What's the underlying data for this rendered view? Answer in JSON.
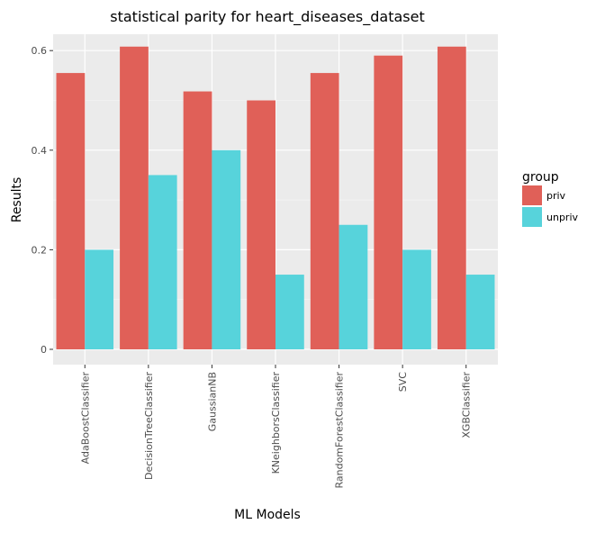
{
  "chart_data": {
    "type": "bar",
    "title": "statistical parity for heart_diseases_dataset",
    "xlabel": "ML Models",
    "ylabel": "Results",
    "ylim": [
      0,
      0.63
    ],
    "yticks": [
      0,
      0.2,
      0.4,
      0.6
    ],
    "ytick_labels": [
      "0",
      "0.2",
      "0.4",
      "0.6"
    ],
    "grid": true,
    "legend_position": "right",
    "legend_title": "group",
    "categories": [
      "AdaBoostClassifier",
      "DecisionTreeClassifier",
      "GaussianNB",
      "KNeighborsClassifier",
      "RandomForestClassifier",
      "SVC",
      "XGBClassifier"
    ],
    "series": [
      {
        "name": "priv",
        "color": "#e06058",
        "values": [
          0.555,
          0.608,
          0.518,
          0.5,
          0.555,
          0.59,
          0.608
        ]
      },
      {
        "name": "unpriv",
        "color": "#57d3db",
        "values": [
          0.2,
          0.35,
          0.4,
          0.15,
          0.25,
          0.2,
          0.15
        ]
      }
    ]
  }
}
